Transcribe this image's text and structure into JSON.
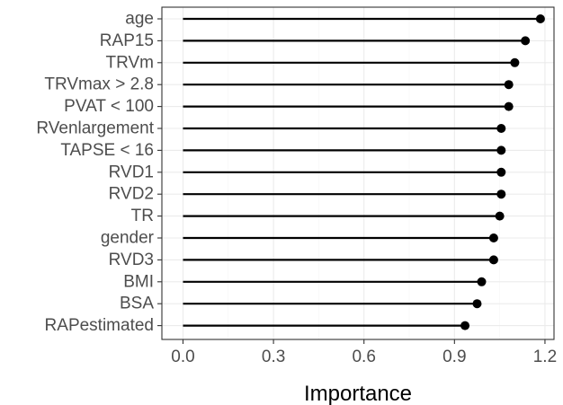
{
  "chart_data": {
    "type": "lollipop",
    "orientation": "horizontal",
    "title": "",
    "xlabel": "Importance",
    "ylabel": "",
    "xlim": [
      -0.07,
      1.23
    ],
    "xticks": [
      0.0,
      0.3,
      0.6,
      0.9,
      1.2
    ],
    "xtick_labels": [
      "0.0",
      "0.3",
      "0.6",
      "0.9",
      "1.2"
    ],
    "grid": true,
    "legend": "none",
    "categories": [
      "age",
      "RAP15",
      "TRVm",
      "TRVmax > 2.8",
      "PVAT < 100",
      "RVenlargement",
      "TAPSE < 16",
      "RVD1",
      "RVD2",
      "TR",
      "gender",
      "RVD3",
      "BMI",
      "BSA",
      "RAPestimated"
    ],
    "values": [
      1.185,
      1.135,
      1.1,
      1.08,
      1.08,
      1.055,
      1.055,
      1.055,
      1.055,
      1.05,
      1.03,
      1.03,
      0.99,
      0.975,
      0.935
    ],
    "colors": {
      "panel_background": "#ffffff",
      "panel_border": "#333333",
      "grid_major": "#ebebeb",
      "grid_minor": "#f5f5f5",
      "mark": "#000000",
      "tick_label": "#4d4d4d"
    }
  }
}
